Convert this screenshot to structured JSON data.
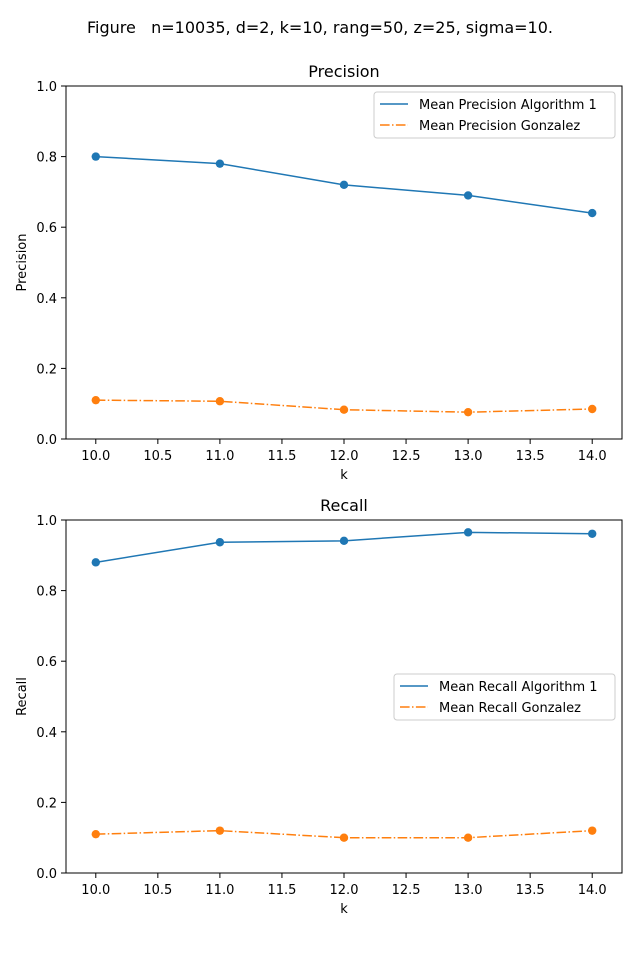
{
  "figure_title": "Figure   n=10035, d=2, k=10, rang=50, z=25, sigma=10.",
  "colors": {
    "algorithm1": "#1f77b4",
    "gonzalez": "#ff7f0e",
    "axis": "#000000",
    "legend_border": "#cccccc"
  },
  "chart_data": [
    {
      "type": "line",
      "title": "Precision",
      "xlabel": "k",
      "ylabel": "Precision",
      "xlim": [
        9.76,
        14.24
      ],
      "ylim": [
        0.0,
        1.0
      ],
      "xticks": [
        10.0,
        10.5,
        11.0,
        11.5,
        12.0,
        12.5,
        13.0,
        13.5,
        14.0
      ],
      "xtick_labels": [
        "10.0",
        "10.5",
        "11.0",
        "11.5",
        "12.0",
        "12.5",
        "13.0",
        "13.5",
        "14.0"
      ],
      "yticks": [
        0.0,
        0.2,
        0.4,
        0.6,
        0.8,
        1.0
      ],
      "ytick_labels": [
        "0.0",
        "0.2",
        "0.4",
        "0.6",
        "0.8",
        "1.0"
      ],
      "grid": false,
      "legend_position": "upper right",
      "x": [
        10,
        11,
        12,
        13,
        14
      ],
      "series": [
        {
          "name": "Mean Precision Algorithm 1",
          "values": [
            0.8,
            0.78,
            0.72,
            0.69,
            0.64
          ],
          "color": "#1f77b4",
          "line_style": "solid"
        },
        {
          "name": "Mean Precision Gonzalez",
          "values": [
            0.11,
            0.107,
            0.083,
            0.076,
            0.085
          ],
          "color": "#ff7f0e",
          "line_style": "dash-dot"
        }
      ]
    },
    {
      "type": "line",
      "title": "Recall",
      "xlabel": "k",
      "ylabel": "Recall",
      "xlim": [
        9.76,
        14.24
      ],
      "ylim": [
        0.0,
        1.0
      ],
      "xticks": [
        10.0,
        10.5,
        11.0,
        11.5,
        12.0,
        12.5,
        13.0,
        13.5,
        14.0
      ],
      "xtick_labels": [
        "10.0",
        "10.5",
        "11.0",
        "11.5",
        "12.0",
        "12.5",
        "13.0",
        "13.5",
        "14.0"
      ],
      "yticks": [
        0.0,
        0.2,
        0.4,
        0.6,
        0.8,
        1.0
      ],
      "ytick_labels": [
        "0.0",
        "0.2",
        "0.4",
        "0.6",
        "0.8",
        "1.0"
      ],
      "grid": false,
      "legend_position": "center right",
      "x": [
        10,
        11,
        12,
        13,
        14
      ],
      "series": [
        {
          "name": "Mean Recall Algorithm 1",
          "values": [
            0.88,
            0.937,
            0.941,
            0.965,
            0.961
          ],
          "color": "#1f77b4",
          "line_style": "solid"
        },
        {
          "name": "Mean Recall Gonzalez",
          "values": [
            0.11,
            0.12,
            0.1,
            0.1,
            0.12
          ],
          "color": "#ff7f0e",
          "line_style": "dash-dot"
        }
      ]
    }
  ]
}
